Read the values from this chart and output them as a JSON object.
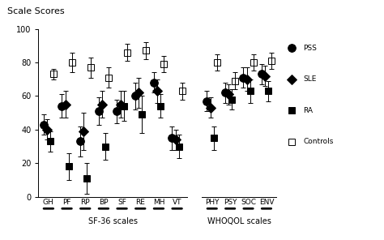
{
  "title": "Scale Scores",
  "sf36_categories": [
    "GH",
    "PF",
    "RP",
    "BP",
    "SF",
    "RE",
    "MH",
    "VT"
  ],
  "whoqol_categories": [
    "PHY",
    "PSY",
    "SOC",
    "ENV"
  ],
  "ylim": [
    0,
    100
  ],
  "yticks": [
    0,
    20,
    40,
    60,
    80,
    100
  ],
  "xlabel_sf36": "SF-36 scales",
  "xlabel_whoqol": "WHOQOL scales",
  "groups": [
    "PSS",
    "SLE",
    "RA",
    "Controls"
  ],
  "group_markers": [
    "o",
    "D",
    "s",
    "s"
  ],
  "group_facecolors": [
    "black",
    "black",
    "black",
    "none"
  ],
  "group_edgecolors": [
    "black",
    "black",
    "black",
    "black"
  ],
  "group_markersizes": [
    7,
    6,
    6,
    6
  ],
  "sf36_data": {
    "PSS": {
      "means": [
        43,
        54,
        33,
        51,
        51,
        60,
        68,
        35
      ],
      "ci_lo": [
        37,
        47,
        24,
        43,
        44,
        52,
        62,
        28
      ],
      "ci_hi": [
        49,
        61,
        42,
        59,
        58,
        68,
        74,
        42
      ]
    },
    "SLE": {
      "means": [
        40,
        55,
        39,
        55,
        55,
        62,
        63,
        34
      ],
      "ci_lo": [
        34,
        47,
        28,
        47,
        47,
        53,
        56,
        28
      ],
      "ci_hi": [
        46,
        63,
        50,
        63,
        63,
        71,
        70,
        40
      ]
    },
    "RA": {
      "means": [
        33,
        18,
        11,
        30,
        54,
        49,
        54,
        30
      ],
      "ci_lo": [
        27,
        10,
        2,
        22,
        45,
        38,
        47,
        23
      ],
      "ci_hi": [
        39,
        26,
        20,
        38,
        63,
        60,
        61,
        37
      ]
    },
    "Controls": {
      "means": [
        73,
        80,
        77,
        71,
        86,
        87,
        79,
        63
      ],
      "ci_lo": [
        70,
        74,
        71,
        65,
        81,
        82,
        74,
        58
      ],
      "ci_hi": [
        76,
        86,
        83,
        77,
        91,
        92,
        84,
        68
      ]
    }
  },
  "whoqol_data": {
    "PSS": {
      "means": [
        57,
        62,
        71,
        73
      ],
      "ci_lo": [
        51,
        56,
        65,
        67
      ],
      "ci_hi": [
        63,
        68,
        77,
        79
      ]
    },
    "SLE": {
      "means": [
        53,
        61,
        70,
        72
      ],
      "ci_lo": [
        47,
        55,
        63,
        66
      ],
      "ci_hi": [
        59,
        67,
        77,
        78
      ]
    },
    "RA": {
      "means": [
        35,
        58,
        63,
        63
      ],
      "ci_lo": [
        28,
        52,
        56,
        57
      ],
      "ci_hi": [
        42,
        64,
        70,
        69
      ]
    },
    "Controls": {
      "means": [
        80,
        69,
        80,
        81
      ],
      "ci_lo": [
        75,
        64,
        75,
        76
      ],
      "ci_hi": [
        85,
        74,
        85,
        86
      ]
    }
  },
  "legend_items": [
    {
      "marker": "o",
      "fc": "black",
      "ec": "black",
      "ms": 7,
      "label": "PSS"
    },
    {
      "marker": "D",
      "fc": "black",
      "ec": "black",
      "ms": 6,
      "label": "SLE"
    },
    {
      "marker": "s",
      "fc": "black",
      "ec": "black",
      "ms": 6,
      "label": "RA"
    },
    {
      "marker": "s",
      "fc": "none",
      "ec": "black",
      "ms": 6,
      "label": "Controls"
    }
  ]
}
